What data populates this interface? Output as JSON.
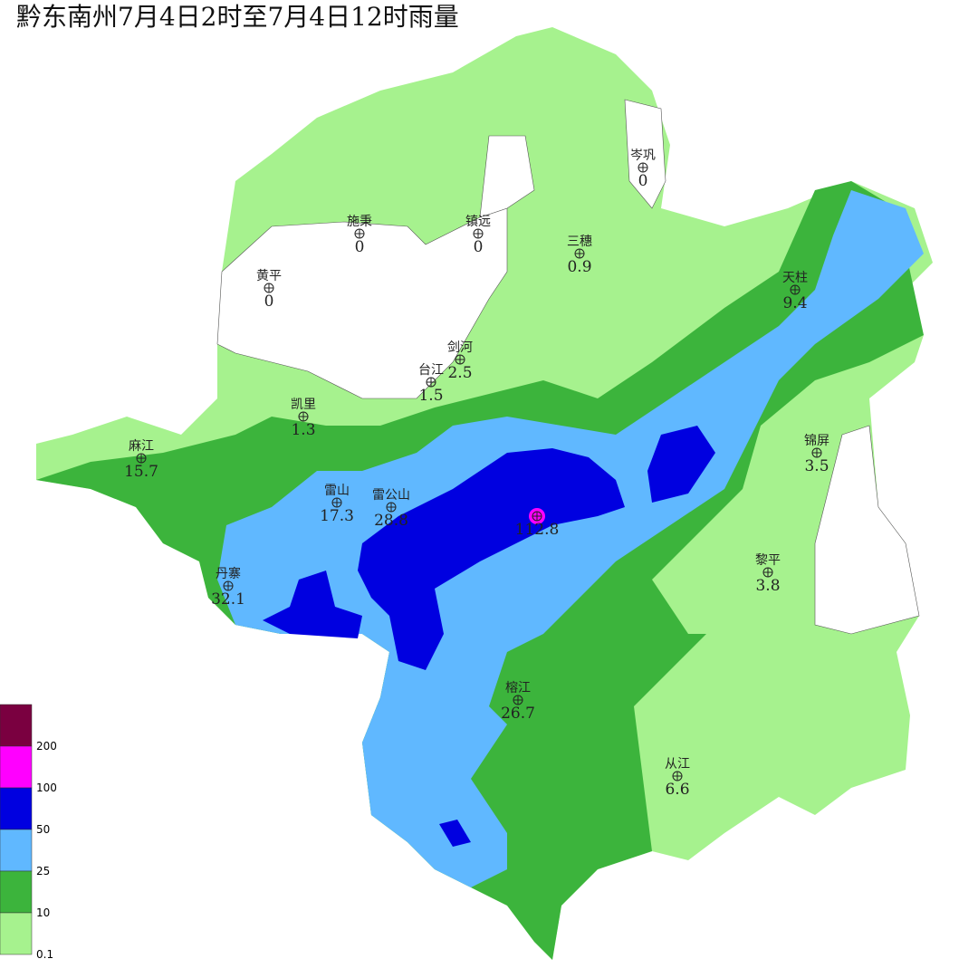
{
  "header": {
    "title": "黔东南州7月4日2时至7月4日12时雨量"
  },
  "stations": [
    {
      "name": "岑巩",
      "value": 0
    },
    {
      "name": "施秉",
      "value": 0
    },
    {
      "name": "镇远",
      "value": 0
    },
    {
      "name": "黄平",
      "value": 0
    },
    {
      "name": "三穗",
      "value": 0.9
    },
    {
      "name": "天柱",
      "value": 9.4
    },
    {
      "name": "剑河",
      "value": 2.5
    },
    {
      "name": "台江",
      "value": 1.5
    },
    {
      "name": "凯里",
      "value": 1.3
    },
    {
      "name": "麻江",
      "value": 15.7
    },
    {
      "name": "锦屏",
      "value": 3.5
    },
    {
      "name": "雷山",
      "value": 17.3
    },
    {
      "name": "雷公山",
      "value": 28.8
    },
    {
      "value": 112.8
    },
    {
      "name": "丹寨",
      "value": 32.1
    },
    {
      "name": "黎平",
      "value": 3.8
    },
    {
      "name": "榕江",
      "value": 26.7
    },
    {
      "name": "从江",
      "value": 6.6
    }
  ],
  "legend": [
    {
      "value": 200,
      "color": "#7a0040"
    },
    {
      "value": 100,
      "color": "#ff00ff"
    },
    {
      "value": 50,
      "color": "#0000e0"
    },
    {
      "value": 25,
      "color": "#60b8ff"
    },
    {
      "value": 10,
      "color": "#3cb43c"
    },
    {
      "value": 0.1,
      "color": "#a6f28e"
    }
  ]
}
